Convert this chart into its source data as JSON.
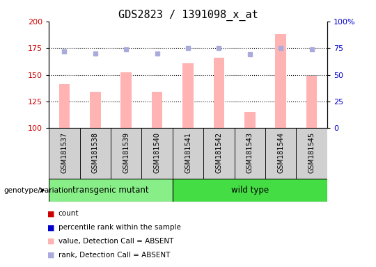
{
  "title": "GDS2823 / 1391098_x_at",
  "samples": [
    "GSM181537",
    "GSM181538",
    "GSM181539",
    "GSM181540",
    "GSM181541",
    "GSM181542",
    "GSM181543",
    "GSM181544",
    "GSM181545"
  ],
  "bar_values": [
    141,
    134,
    152,
    134,
    161,
    166,
    115,
    188,
    149
  ],
  "dot_values": [
    172,
    170,
    174,
    170,
    175,
    175,
    169,
    175,
    174
  ],
  "bar_color_absent": "#ffb3b3",
  "dot_color_absent": "#aaaadd",
  "ylim_left": [
    100,
    200
  ],
  "ylim_right": [
    0,
    100
  ],
  "yticks_left": [
    100,
    125,
    150,
    175,
    200
  ],
  "yticks_right": [
    0,
    25,
    50,
    75,
    100
  ],
  "ytick_labels_right": [
    "0",
    "25",
    "50",
    "75",
    "100%"
  ],
  "groups": [
    {
      "label": "transgenic mutant",
      "start": 0,
      "end": 3,
      "color": "#88ee88"
    },
    {
      "label": "wild type",
      "start": 4,
      "end": 8,
      "color": "#44dd44"
    }
  ],
  "group_label": "genotype/variation",
  "legend_colors": [
    "#cc0000",
    "#0000cc",
    "#ffb3b3",
    "#aaaadd"
  ],
  "legend_labels": [
    "count",
    "percentile rank within the sample",
    "value, Detection Call = ABSENT",
    "rank, Detection Call = ABSENT"
  ],
  "plot_bg": "#ffffff",
  "tick_bg": "#d0d0d0",
  "title_fontsize": 11,
  "axis_color_left": "#cc0000",
  "axis_color_right": "#0000cc"
}
